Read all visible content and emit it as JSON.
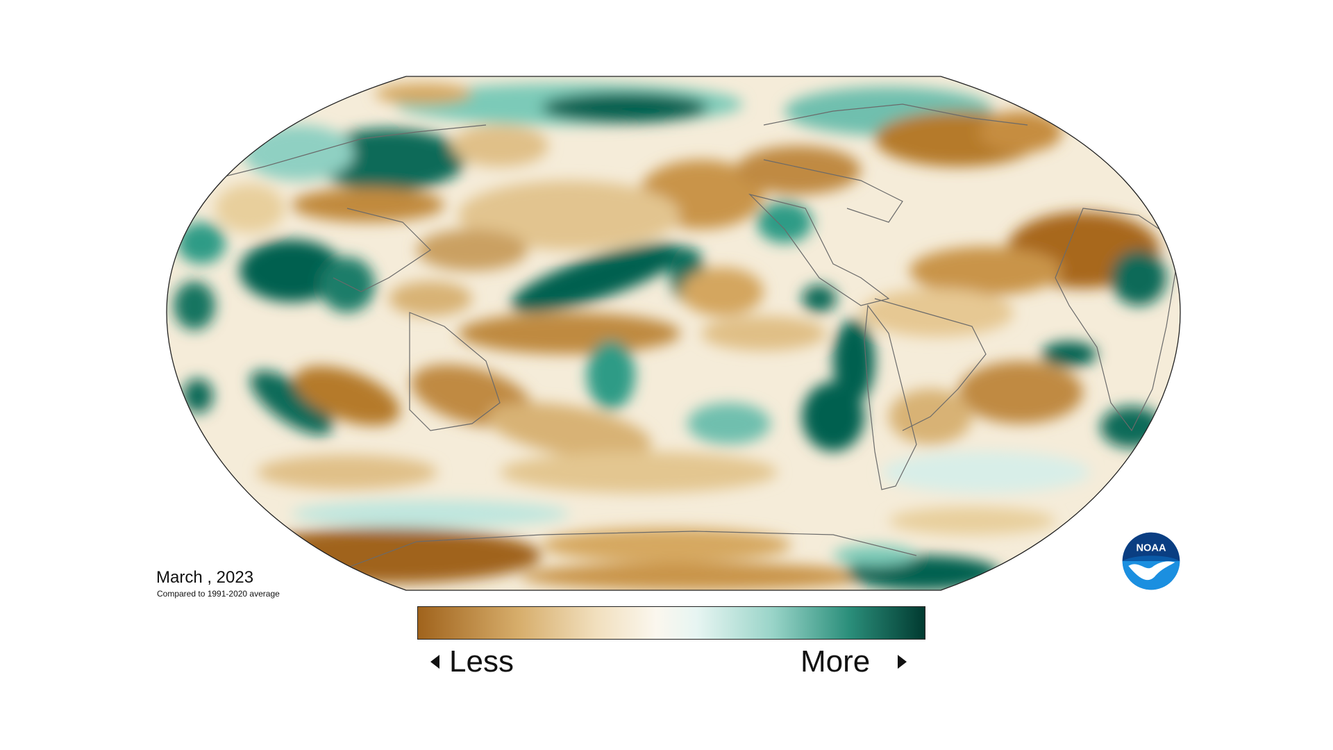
{
  "map": {
    "date": "March , 2023",
    "baseline": "Compared to 1991-2020 average"
  },
  "legend": {
    "less_label": "Less",
    "more_label": "More",
    "colors": [
      "#a0631c",
      "#c99a4f",
      "#ead2a0",
      "#f7f1e3",
      "#eef8f6",
      "#a9ddd3",
      "#4fb3a0",
      "#0f7a66",
      "#003d33"
    ]
  },
  "logo": {
    "text": "NOAA"
  },
  "palette": {
    "dry_strong": "#a0631c",
    "dry_mid": "#c99a4f",
    "dry_light": "#e8cf9c",
    "neutral": "#f8f4ea",
    "wet_light": "#bfe6de",
    "wet_mid": "#5fbcaa",
    "wet_strong": "#06604f",
    "coast": "#666666",
    "frame": "#222222"
  }
}
